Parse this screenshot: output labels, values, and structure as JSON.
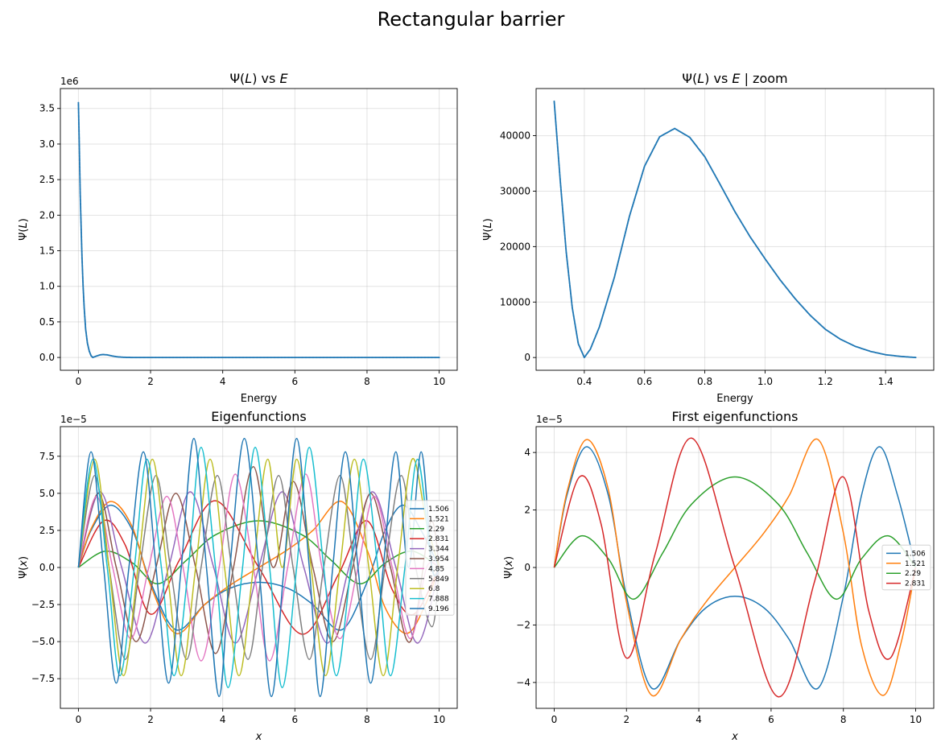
{
  "figure": {
    "suptitle": "Rectangular barrier"
  },
  "chart_data": [
    {
      "id": "p1",
      "type": "scatter",
      "title": "Ψ(L) vs E",
      "xlabel": "Energy",
      "ylabel": "Ψ(L)",
      "offset_text": "1e6",
      "xlim": [
        -0.5,
        10.5
      ],
      "ylim": [
        -0.18,
        3.78
      ],
      "x_ticks": [
        0,
        2,
        4,
        6,
        8,
        10
      ],
      "x_tick_labels": [
        "0",
        "2",
        "4",
        "6",
        "8",
        "10"
      ],
      "y_ticks": [
        0,
        0.5,
        1.0,
        1.5,
        2.0,
        2.5,
        3.0,
        3.5
      ],
      "y_tick_labels": [
        "0.0",
        "0.5",
        "1.0",
        "1.5",
        "2.0",
        "2.5",
        "3.0",
        "3.5"
      ],
      "grid": true,
      "color": "#1f77b4",
      "x": [
        0.0,
        0.02,
        0.05,
        0.08,
        0.1,
        0.13,
        0.16,
        0.2,
        0.25,
        0.3,
        0.35,
        0.4,
        0.5,
        0.6,
        0.7,
        0.8,
        0.9,
        1.0,
        1.1,
        1.2,
        1.3,
        1.4,
        1.5,
        2.0,
        4.0,
        6.0,
        8.0,
        10.0
      ],
      "y": [
        3.58,
        3.1,
        2.3,
        1.75,
        1.4,
        1.0,
        0.7,
        0.4,
        0.2,
        0.09,
        0.025,
        0.0,
        0.02,
        0.037,
        0.041,
        0.036,
        0.025,
        0.015,
        0.008,
        0.004,
        0.002,
        0.0005,
        0.0,
        0.0,
        0.0,
        0.0,
        0.0,
        0.0
      ]
    },
    {
      "id": "p2",
      "type": "scatter",
      "title": "Ψ(L) vs E | zoom",
      "xlabel": "Energy",
      "ylabel": "Ψ(L)",
      "xlim": [
        0.24,
        1.56
      ],
      "ylim": [
        -2300,
        48500
      ],
      "x_ticks": [
        0.4,
        0.6,
        0.8,
        1.0,
        1.2,
        1.4
      ],
      "x_tick_labels": [
        "0.4",
        "0.6",
        "0.8",
        "1.0",
        "1.2",
        "1.4"
      ],
      "y_ticks": [
        0,
        10000,
        20000,
        30000,
        40000
      ],
      "y_tick_labels": [
        "0",
        "10000",
        "20000",
        "30000",
        "40000"
      ],
      "grid": true,
      "color": "#1f77b4",
      "x": [
        0.3,
        0.32,
        0.34,
        0.36,
        0.38,
        0.4,
        0.42,
        0.45,
        0.5,
        0.55,
        0.6,
        0.65,
        0.7,
        0.75,
        0.8,
        0.85,
        0.9,
        0.95,
        1.0,
        1.05,
        1.1,
        1.15,
        1.2,
        1.25,
        1.3,
        1.35,
        1.4,
        1.45,
        1.5
      ],
      "y": [
        46200,
        32000,
        19000,
        9000,
        2500,
        0,
        1500,
        5500,
        14500,
        25500,
        34500,
        39800,
        41300,
        39700,
        36200,
        31300,
        26300,
        21800,
        17800,
        14000,
        10600,
        7600,
        5100,
        3300,
        2000,
        1100,
        500,
        200,
        0
      ]
    },
    {
      "id": "p3",
      "type": "line",
      "title": "Eigenfunctions",
      "xlabel": "x",
      "ylabel": "Ψ(x)",
      "offset_text": "1e−5",
      "xlim": [
        -0.5,
        10.5
      ],
      "ylim": [
        -9.5,
        9.5
      ],
      "x_ticks": [
        0,
        2,
        4,
        6,
        8,
        10
      ],
      "x_tick_labels": [
        "0",
        "2",
        "4",
        "6",
        "8",
        "10"
      ],
      "y_ticks": [
        -7.5,
        -5.0,
        -2.5,
        0.0,
        2.5,
        5.0,
        7.5
      ],
      "y_tick_labels": [
        "−7.5",
        "−5.0",
        "−2.5",
        "0.0",
        "2.5",
        "5.0",
        "7.5"
      ],
      "grid": true,
      "legend": "center-right",
      "series": [
        {
          "name": "1.506",
          "color": "#1f77b4",
          "x": [
            0,
            0.35,
            0.9,
            1.5,
            2.0,
            2.7,
            3.5,
            4.2,
            5.0,
            5.8,
            6.5,
            7.3,
            8.0,
            8.5,
            9.0,
            9.5,
            10.0
          ],
          "y": [
            0,
            2.5,
            4.2,
            2.5,
            -1.0,
            -4.2,
            -2.5,
            -1.4,
            -1.0,
            -1.4,
            -2.5,
            -4.2,
            -1.0,
            2.5,
            4.2,
            2.5,
            0
          ]
        },
        {
          "name": "1.521",
          "color": "#ff7f0e",
          "x": [
            0,
            0.35,
            0.9,
            1.5,
            2.0,
            2.7,
            3.5,
            4.2,
            5.0,
            5.8,
            6.5,
            7.3,
            8.0,
            8.5,
            9.1,
            9.6,
            10.0
          ],
          "y": [
            0,
            2.6,
            4.45,
            2.7,
            -1.2,
            -4.45,
            -2.5,
            -1.2,
            0.0,
            1.2,
            2.5,
            4.45,
            1.2,
            -2.7,
            -4.45,
            -2.6,
            0
          ]
        },
        {
          "name": "2.29",
          "color": "#2ca02c",
          "x": [
            0,
            0.75,
            1.5,
            2.2,
            3.0,
            3.8,
            5.0,
            6.2,
            7.0,
            7.8,
            8.5,
            9.25,
            10.0
          ],
          "y": [
            0,
            1.1,
            0.3,
            -1.1,
            0.5,
            2.2,
            3.15,
            2.2,
            0.5,
            -1.1,
            0.3,
            1.1,
            0
          ]
        },
        {
          "name": "2.831",
          "color": "#d62728",
          "x": [
            0,
            0.7,
            1.3,
            2.0,
            2.8,
            3.8,
            5.0,
            6.2,
            7.2,
            8.0,
            8.7,
            9.3,
            10.0
          ],
          "y": [
            0,
            3.15,
            1.5,
            -3.15,
            0.5,
            4.5,
            0.0,
            -4.5,
            -0.5,
            3.15,
            -1.5,
            -3.15,
            0
          ]
        },
        {
          "name": "3.344",
          "color": "#9467bd",
          "x": [
            0,
            0.6,
            1.2,
            1.85,
            2.5,
            3.1,
            3.75,
            4.35,
            5.0,
            5.65,
            6.25,
            6.9,
            7.5,
            8.15,
            8.8,
            9.4,
            10.0
          ],
          "y": [
            0,
            5.1,
            0,
            -5.1,
            0,
            5.1,
            0,
            -5.1,
            0,
            5.1,
            0,
            -5.1,
            0,
            5.1,
            0,
            -5.1,
            0
          ]
        },
        {
          "name": "3.954",
          "color": "#8c564b",
          "x": [
            0,
            0.55,
            1.05,
            1.6,
            2.15,
            2.7,
            3.25,
            3.8,
            4.3,
            4.85,
            5.4,
            5.95,
            6.5,
            7.05,
            7.6,
            8.1,
            8.65,
            9.2,
            9.75,
            10.0
          ],
          "y": [
            0,
            5.0,
            0,
            -5.0,
            0,
            5.0,
            0,
            -5.8,
            0,
            6.8,
            0,
            5.8,
            0,
            -5.0,
            0,
            5.0,
            0,
            -5.0,
            3.0,
            0
          ]
        },
        {
          "name": "4.85",
          "color": "#e377c2",
          "x": [
            0,
            0.5,
            0.95,
            1.45,
            1.95,
            2.45,
            2.9,
            3.4,
            3.9,
            4.35,
            4.85,
            5.3,
            5.8,
            6.3,
            6.75,
            7.25,
            7.75,
            8.2,
            8.7,
            9.2,
            9.65,
            10.0
          ],
          "y": [
            0,
            4.8,
            0,
            -4.8,
            0,
            4.8,
            0,
            -6.3,
            0,
            6.3,
            0,
            -6.3,
            0,
            6.3,
            0,
            -4.8,
            0,
            4.8,
            0,
            -4.8,
            0,
            0
          ]
        },
        {
          "name": "5.849",
          "color": "#7f7f7f",
          "x": [
            0,
            0.45,
            0.85,
            1.3,
            1.7,
            2.15,
            2.55,
            3.0,
            3.4,
            3.85,
            4.25,
            4.7,
            5.1,
            5.55,
            5.95,
            6.4,
            6.8,
            7.25,
            7.65,
            8.1,
            8.5,
            8.95,
            9.35,
            9.8,
            10.0
          ],
          "y": [
            0,
            6.2,
            0,
            -6.2,
            0,
            6.2,
            0,
            -6.2,
            0,
            6.2,
            0,
            -6.2,
            0,
            6.2,
            0,
            -6.2,
            0,
            6.2,
            0,
            -6.2,
            0,
            6.2,
            0,
            -4.0,
            0
          ]
        },
        {
          "name": "6.8",
          "color": "#bcbd22",
          "x": [
            0,
            0.45,
            0.85,
            1.25,
            1.65,
            2.05,
            2.45,
            2.85,
            3.25,
            3.65,
            4.05,
            4.45,
            4.85,
            5.25,
            5.65,
            6.05,
            6.45,
            6.85,
            7.25,
            7.65,
            8.05,
            8.45,
            8.85,
            9.25,
            9.65,
            10.0
          ],
          "y": [
            0,
            7.3,
            0,
            -7.3,
            0,
            7.3,
            0,
            -7.3,
            0,
            7.3,
            0,
            -7.3,
            0,
            7.3,
            0,
            7.3,
            0,
            -7.3,
            0,
            7.3,
            0,
            -7.3,
            0,
            7.3,
            3.0,
            0
          ]
        },
        {
          "name": "7.888",
          "color": "#17becf",
          "x": [
            0,
            0.4,
            0.8,
            1.15,
            1.55,
            1.9,
            2.3,
            2.65,
            3.05,
            3.4,
            3.8,
            4.15,
            4.55,
            4.9,
            5.3,
            5.65,
            6.05,
            6.4,
            6.8,
            7.15,
            7.55,
            7.9,
            8.3,
            8.65,
            9.05,
            9.4,
            9.8,
            10.0
          ],
          "y": [
            0,
            7.3,
            0,
            -7.3,
            0,
            7.3,
            0,
            -7.3,
            0,
            8.1,
            0,
            -8.1,
            0,
            8.1,
            0,
            -8.1,
            0,
            8.1,
            0,
            -7.3,
            0,
            7.3,
            0,
            -7.3,
            0,
            7.3,
            0,
            0
          ]
        },
        {
          "name": "9.196",
          "color": "#1f77b4",
          "x": [
            0,
            0.35,
            0.7,
            1.05,
            1.4,
            1.8,
            2.15,
            2.5,
            2.85,
            3.2,
            3.55,
            3.9,
            4.2,
            4.6,
            5.0,
            5.35,
            5.7,
            6.05,
            6.4,
            6.7,
            7.05,
            7.4,
            7.75,
            8.1,
            8.45,
            8.8,
            9.15,
            9.5,
            9.8,
            10.0
          ],
          "y": [
            0,
            7.8,
            0,
            -7.8,
            0,
            7.8,
            0,
            -7.8,
            0,
            8.7,
            0,
            -8.7,
            0,
            8.7,
            0,
            -8.7,
            0,
            8.7,
            0,
            -8.7,
            0,
            7.8,
            0,
            -7.8,
            0,
            7.8,
            0,
            7.8,
            0,
            0
          ]
        }
      ]
    },
    {
      "id": "p4",
      "type": "line",
      "title": "First eigenfunctions",
      "xlabel": "x",
      "ylabel": "Ψ(x)",
      "offset_text": "1e−5",
      "xlim": [
        -0.5,
        10.5
      ],
      "ylim": [
        -4.9,
        4.9
      ],
      "x_ticks": [
        0,
        2,
        4,
        6,
        8,
        10
      ],
      "x_tick_labels": [
        "0",
        "2",
        "4",
        "6",
        "8",
        "10"
      ],
      "y_ticks": [
        -4,
        -2,
        0,
        2,
        4
      ],
      "y_tick_labels": [
        "−4",
        "−2",
        "0",
        "2",
        "4"
      ],
      "grid": true,
      "legend": "center-right",
      "series": [
        {
          "name": "1.506",
          "color": "#1f77b4",
          "x": [
            0,
            0.35,
            0.9,
            1.5,
            2.0,
            2.7,
            3.5,
            4.2,
            5.0,
            5.8,
            6.5,
            7.3,
            8.0,
            8.5,
            9.0,
            9.5,
            10.0
          ],
          "y": [
            0,
            2.5,
            4.2,
            2.5,
            -1.0,
            -4.2,
            -2.5,
            -1.4,
            -1.0,
            -1.4,
            -2.5,
            -4.2,
            -1.0,
            2.5,
            4.2,
            2.5,
            0
          ]
        },
        {
          "name": "1.521",
          "color": "#ff7f0e",
          "x": [
            0,
            0.35,
            0.9,
            1.5,
            2.0,
            2.7,
            3.5,
            4.2,
            5.0,
            5.8,
            6.5,
            7.3,
            8.0,
            8.5,
            9.1,
            9.6,
            10.0
          ],
          "y": [
            0,
            2.6,
            4.45,
            2.7,
            -1.2,
            -4.45,
            -2.5,
            -1.2,
            0.0,
            1.2,
            2.5,
            4.45,
            1.2,
            -2.7,
            -4.45,
            -2.6,
            0
          ]
        },
        {
          "name": "2.29",
          "color": "#2ca02c",
          "x": [
            0,
            0.75,
            1.5,
            2.2,
            3.0,
            3.8,
            5.0,
            6.2,
            7.0,
            7.8,
            8.5,
            9.25,
            10.0
          ],
          "y": [
            0,
            1.1,
            0.3,
            -1.1,
            0.5,
            2.2,
            3.15,
            2.2,
            0.5,
            -1.1,
            0.3,
            1.1,
            0
          ]
        },
        {
          "name": "2.831",
          "color": "#d62728",
          "x": [
            0,
            0.7,
            1.3,
            2.0,
            2.8,
            3.8,
            5.0,
            6.2,
            7.2,
            8.0,
            8.7,
            9.3,
            10.0
          ],
          "y": [
            0,
            3.15,
            1.5,
            -3.15,
            0.5,
            4.5,
            0.0,
            -4.5,
            -0.5,
            3.15,
            -1.5,
            -3.15,
            0
          ]
        }
      ]
    }
  ]
}
